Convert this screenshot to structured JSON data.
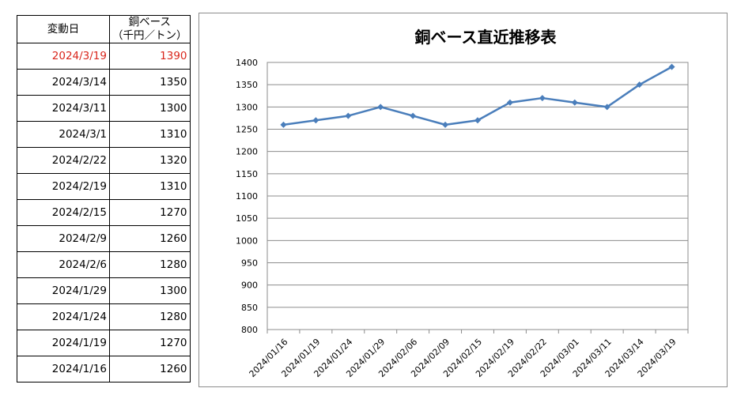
{
  "table": {
    "headers": {
      "date": "変動日",
      "price_line1": "銅ベース",
      "price_line2": "（千円／トン）"
    },
    "rows": [
      {
        "date": "2024/3/19",
        "price": "1390",
        "highlight": true
      },
      {
        "date": "2024/3/14",
        "price": "1350"
      },
      {
        "date": "2024/3/11",
        "price": "1300"
      },
      {
        "date": "2024/3/1",
        "price": "1310"
      },
      {
        "date": "2024/2/22",
        "price": "1320"
      },
      {
        "date": "2024/2/19",
        "price": "1310"
      },
      {
        "date": "2024/2/15",
        "price": "1270"
      },
      {
        "date": "2024/2/9",
        "price": "1260"
      },
      {
        "date": "2024/2/6",
        "price": "1280"
      },
      {
        "date": "2024/1/29",
        "price": "1300"
      },
      {
        "date": "2024/1/24",
        "price": "1280"
      },
      {
        "date": "2024/1/19",
        "price": "1270"
      },
      {
        "date": "2024/1/16",
        "price": "1260"
      }
    ],
    "highlight_color": "#d9261c"
  },
  "chart_data": {
    "type": "line",
    "title": "銅ベース直近推移表",
    "x": [
      "2024/01/16",
      "2024/01/19",
      "2024/01/24",
      "2024/01/29",
      "2024/02/06",
      "2024/02/09",
      "2024/02/15",
      "2024/02/19",
      "2024/02/22",
      "2024/03/01",
      "2024/03/11",
      "2024/03/14",
      "2024/03/19"
    ],
    "series": [
      {
        "values": [
          1260,
          1270,
          1280,
          1300,
          1280,
          1260,
          1270,
          1310,
          1320,
          1310,
          1300,
          1350,
          1390
        ]
      }
    ],
    "yticks": [
      800,
      850,
      900,
      950,
      1000,
      1050,
      1100,
      1150,
      1200,
      1250,
      1300,
      1350,
      1400
    ],
    "ylim": [
      800,
      1400
    ],
    "grid": true,
    "line_color": "#4a7ebb",
    "marker": "diamond"
  }
}
